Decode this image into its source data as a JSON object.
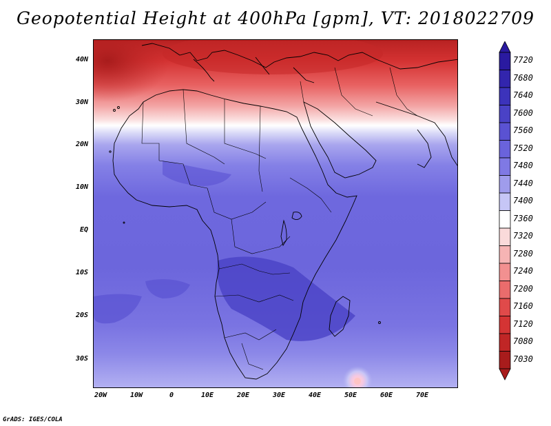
{
  "title": "Geopotential Height at 400hPa [gpm], VT: 2018022709",
  "credit": "GrADS: IGES/COLA",
  "lat_ticks": [
    "40N",
    "30N",
    "20N",
    "10N",
    "EQ",
    "10S",
    "20S",
    "30S"
  ],
  "lon_ticks": [
    "20W",
    "10W",
    "0",
    "10E",
    "20E",
    "30E",
    "40E",
    "50E",
    "60E",
    "70E"
  ],
  "colorbar": {
    "levels": [
      "7720",
      "7680",
      "7640",
      "7600",
      "7560",
      "7520",
      "7480",
      "7440",
      "7400",
      "7360",
      "7320",
      "7280",
      "7240",
      "7200",
      "7160",
      "7120",
      "7080",
      "7030"
    ],
    "colors": [
      "#2a1aa0",
      "#3225ad",
      "#3c33bb",
      "#4a42c6",
      "#5a52d2",
      "#6a63dc",
      "#7f79e4",
      "#9f9cec",
      "#c6c6f6",
      "#ffffff",
      "#fadada",
      "#f6b4b4",
      "#f29090",
      "#ea6c6c",
      "#e04a4a",
      "#d43434",
      "#c02626",
      "#a81c1c"
    ]
  }
}
